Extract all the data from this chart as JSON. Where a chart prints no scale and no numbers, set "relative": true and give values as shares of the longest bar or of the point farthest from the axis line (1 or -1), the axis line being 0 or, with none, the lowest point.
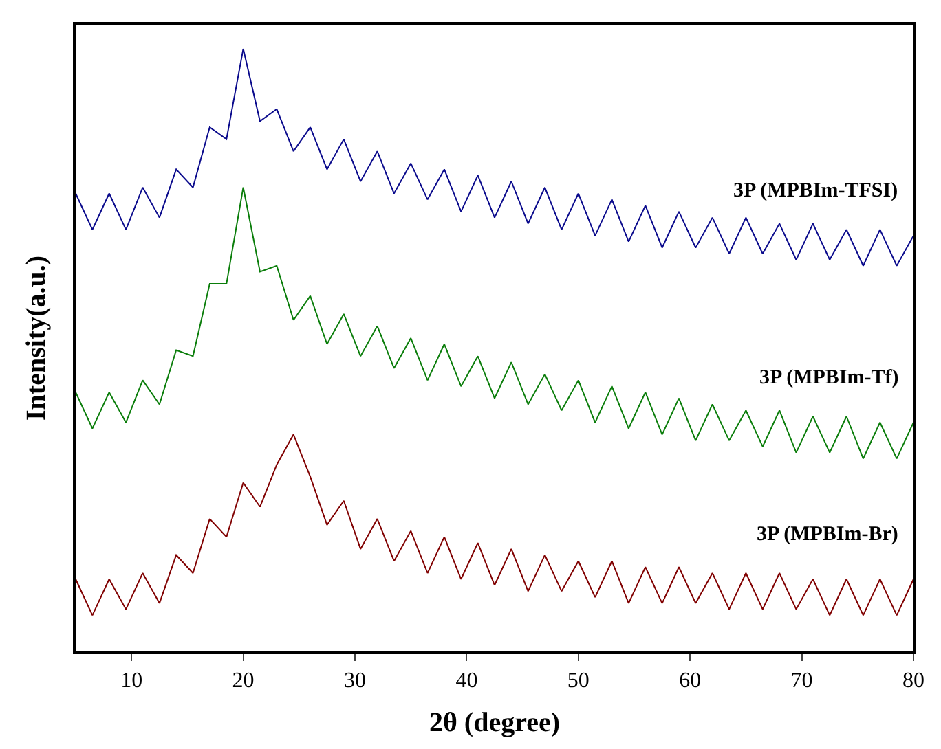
{
  "chart_data": {
    "type": "line",
    "relative": true,
    "xlabel": "2θ (degree)",
    "ylabel": "Intensity(a.u.)",
    "xlim": [
      5,
      80
    ],
    "xticks": [
      10,
      20,
      30,
      40,
      50,
      60,
      70,
      80
    ],
    "grid": false,
    "legend": false,
    "marker": "none",
    "line_style": "solid",
    "tick_labels": "x",
    "x": [
      5,
      6.5,
      8,
      9.5,
      11,
      12.5,
      14,
      15.5,
      17,
      18.5,
      20,
      21.5,
      23,
      24.5,
      26,
      27.5,
      29,
      30.5,
      32,
      33.5,
      35,
      36.5,
      38,
      39.5,
      41,
      42.5,
      44,
      45.5,
      47,
      48.5,
      50,
      51.5,
      53,
      54.5,
      56,
      57.5,
      59,
      60.5,
      62,
      63.5,
      65,
      66.5,
      68,
      69.5,
      71,
      72.5,
      74,
      75.5,
      77,
      78.5,
      80
    ],
    "series": [
      {
        "name": "3P (MPBIm-TFSI)",
        "color": "#0a0a8c",
        "values": [
          0.76,
          0.7,
          0.76,
          0.7,
          0.77,
          0.72,
          0.8,
          0.77,
          0.87,
          0.85,
          1.0,
          0.88,
          0.9,
          0.83,
          0.87,
          0.8,
          0.85,
          0.78,
          0.83,
          0.76,
          0.81,
          0.75,
          0.8,
          0.73,
          0.79,
          0.72,
          0.78,
          0.71,
          0.77,
          0.7,
          0.76,
          0.69,
          0.75,
          0.68,
          0.74,
          0.67,
          0.73,
          0.67,
          0.72,
          0.66,
          0.72,
          0.66,
          0.71,
          0.65,
          0.71,
          0.65,
          0.7,
          0.64,
          0.7,
          0.64,
          0.69
        ]
      },
      {
        "name": "3P (MPBIm-Tf)",
        "color": "#0a7d0a",
        "values": [
          0.43,
          0.37,
          0.43,
          0.38,
          0.45,
          0.41,
          0.5,
          0.49,
          0.61,
          0.61,
          0.77,
          0.63,
          0.64,
          0.55,
          0.59,
          0.51,
          0.56,
          0.49,
          0.54,
          0.47,
          0.52,
          0.45,
          0.51,
          0.44,
          0.49,
          0.42,
          0.48,
          0.41,
          0.46,
          0.4,
          0.45,
          0.38,
          0.44,
          0.37,
          0.43,
          0.36,
          0.42,
          0.35,
          0.41,
          0.35,
          0.4,
          0.34,
          0.4,
          0.33,
          0.39,
          0.33,
          0.39,
          0.32,
          0.38,
          0.32,
          0.38
        ]
      },
      {
        "name": "3P (MPBIm-Br)",
        "color": "#800000",
        "values": [
          0.12,
          0.06,
          0.12,
          0.07,
          0.13,
          0.08,
          0.16,
          0.13,
          0.22,
          0.19,
          0.28,
          0.24,
          0.31,
          0.36,
          0.29,
          0.21,
          0.25,
          0.17,
          0.22,
          0.15,
          0.2,
          0.13,
          0.19,
          0.12,
          0.18,
          0.11,
          0.17,
          0.1,
          0.16,
          0.1,
          0.15,
          0.09,
          0.15,
          0.08,
          0.14,
          0.08,
          0.14,
          0.08,
          0.13,
          0.07,
          0.13,
          0.07,
          0.13,
          0.07,
          0.12,
          0.06,
          0.12,
          0.06,
          0.12,
          0.06,
          0.12
        ]
      }
    ]
  }
}
